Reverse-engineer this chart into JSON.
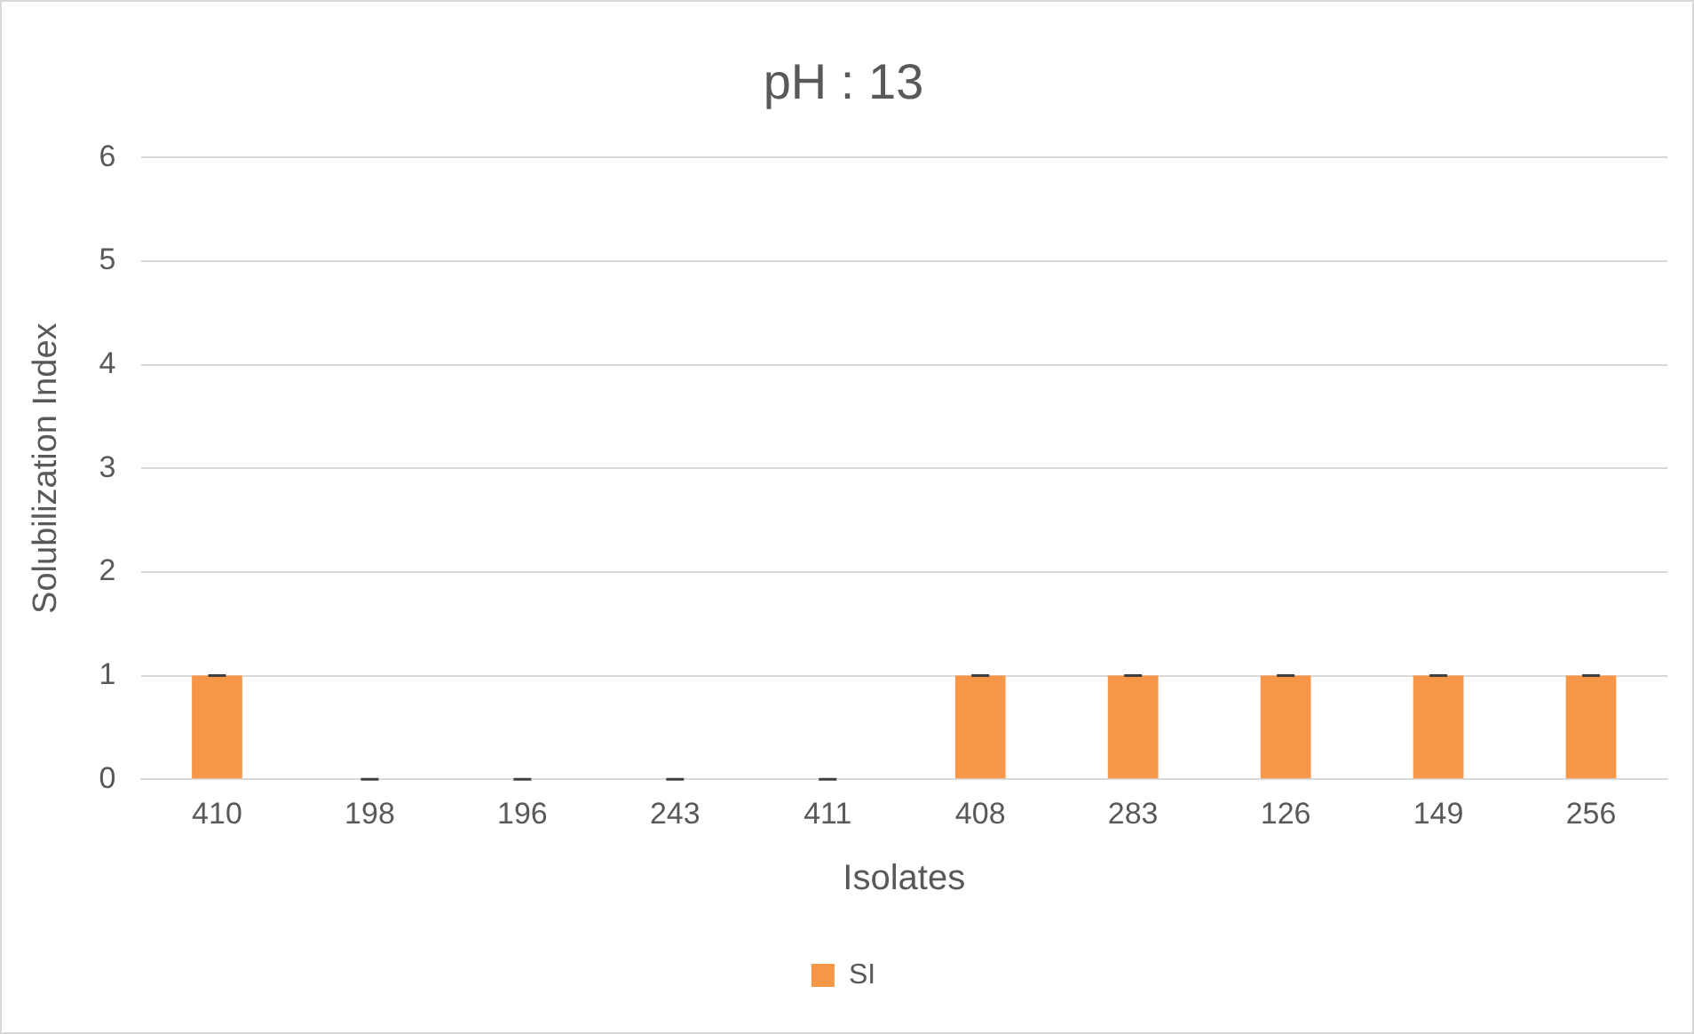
{
  "chart_data": {
    "type": "bar",
    "title": "pH : 13",
    "xlabel": "Isolates",
    "ylabel": "Solubilization Index",
    "categories": [
      "410",
      "198",
      "196",
      "243",
      "411",
      "408",
      "283",
      "126",
      "149",
      "256"
    ],
    "series": [
      {
        "name": "SI",
        "color": "#f79646",
        "values": [
          1,
          0,
          0,
          0,
          0,
          1,
          1,
          1,
          1,
          1
        ],
        "errors": [
          0,
          0,
          0,
          0,
          0,
          0,
          0,
          0,
          0,
          0
        ]
      }
    ],
    "ylim": [
      0,
      6
    ],
    "yticks": [
      0,
      1,
      2,
      3,
      4,
      5,
      6
    ],
    "grid": "y",
    "legend": "bottom"
  }
}
